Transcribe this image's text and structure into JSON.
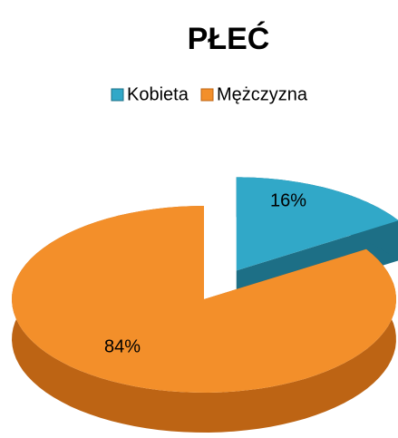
{
  "chart_data": {
    "type": "pie",
    "title": "PŁEĆ",
    "categories": [
      "Kobieta",
      "Mężczyzna"
    ],
    "values": [
      16,
      84
    ],
    "value_labels": [
      "16%",
      "84%"
    ],
    "colors": [
      "#31a8c8",
      "#f38f2a"
    ],
    "side_colors": [
      "#1d6f86",
      "#bd6414"
    ],
    "legend": "top"
  }
}
